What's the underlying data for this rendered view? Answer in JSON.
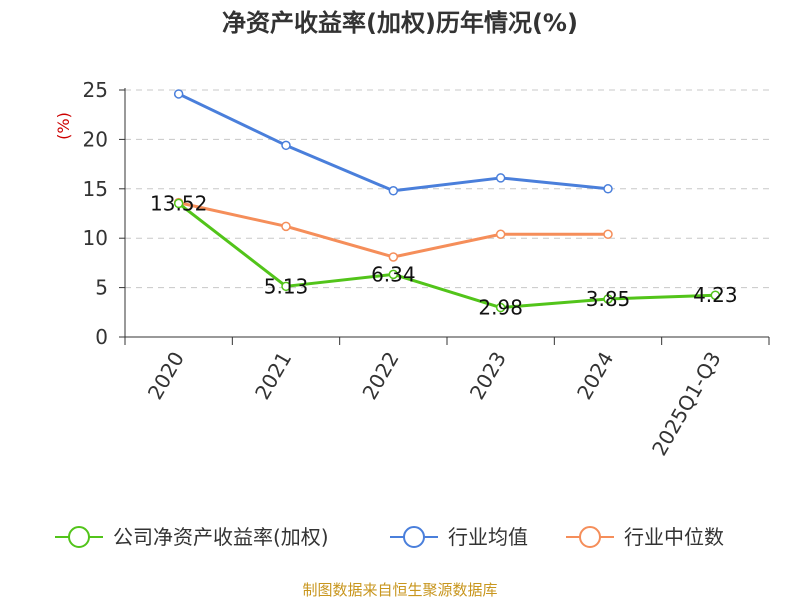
{
  "chart_data": {
    "type": "line",
    "title": "净资产收益率(加权)历年情况(%)",
    "ylabel": "(%)",
    "xlabel": "",
    "categories": [
      "2020",
      "2021",
      "2022",
      "2023",
      "2024",
      "2025Q1-Q3"
    ],
    "ylim": [
      0,
      25
    ],
    "yticks": [
      0,
      5,
      10,
      15,
      20,
      25
    ],
    "grid": true,
    "legend_position": "bottom",
    "series": [
      {
        "name": "公司净资产收益率(加权)",
        "color": "#52c41a",
        "values": [
          13.52,
          5.13,
          6.34,
          2.98,
          3.85,
          4.23
        ],
        "labels": [
          "13.52",
          "5.13",
          "6.34",
          "2.98",
          "3.85",
          "4.23"
        ]
      },
      {
        "name": "行业均值",
        "color": "#4a7fdb",
        "values": [
          24.6,
          19.4,
          14.8,
          16.1,
          15.0,
          null
        ]
      },
      {
        "name": "行业中位数",
        "color": "#f58e5a",
        "values": [
          13.6,
          11.2,
          8.1,
          10.4,
          10.4,
          null
        ]
      }
    ],
    "source": "制图数据来自恒生聚源数据库"
  }
}
